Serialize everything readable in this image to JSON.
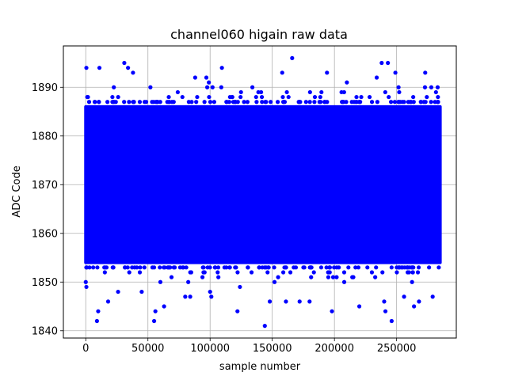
{
  "chart_data": {
    "type": "scatter",
    "title": "channel060 higain raw data",
    "xlabel": "sample number",
    "ylabel": "ADC Code",
    "xlim": [
      -18000,
      298000
    ],
    "ylim": [
      1838.5,
      1898.5
    ],
    "xticks": [
      0,
      50000,
      100000,
      150000,
      200000,
      250000
    ],
    "yticks": [
      1840,
      1850,
      1860,
      1870,
      1880,
      1890
    ],
    "grid": true,
    "series": [
      {
        "color": "#0000ff",
        "x_range": [
          0,
          285000
        ],
        "core_band": [
          1854,
          1886
        ],
        "outliers": [
          [
            500,
            1894
          ],
          [
            500,
            1849
          ],
          [
            9000,
            1842
          ],
          [
            10000,
            1844
          ],
          [
            11000,
            1894
          ],
          [
            18000,
            1846
          ],
          [
            26000,
            1848
          ],
          [
            31000,
            1895
          ],
          [
            34000,
            1894
          ],
          [
            38000,
            1893
          ],
          [
            45000,
            1848
          ],
          [
            52000,
            1890
          ],
          [
            55000,
            1842
          ],
          [
            56000,
            1844
          ],
          [
            63000,
            1845
          ],
          [
            74000,
            1889
          ],
          [
            80000,
            1847
          ],
          [
            84000,
            1847
          ],
          [
            88000,
            1892
          ],
          [
            97000,
            1892
          ],
          [
            99000,
            1891
          ],
          [
            100000,
            1848
          ],
          [
            101000,
            1847
          ],
          [
            109000,
            1890
          ],
          [
            109500,
            1894
          ],
          [
            122000,
            1844
          ],
          [
            124000,
            1849
          ],
          [
            134000,
            1890
          ],
          [
            144000,
            1841
          ],
          [
            148000,
            1846
          ],
          [
            158000,
            1893
          ],
          [
            161000,
            1846
          ],
          [
            166000,
            1896
          ],
          [
            172000,
            1846
          ],
          [
            180000,
            1846
          ],
          [
            194000,
            1893
          ],
          [
            198000,
            1844
          ],
          [
            210000,
            1891
          ],
          [
            220000,
            1845
          ],
          [
            234000,
            1892
          ],
          [
            238000,
            1895
          ],
          [
            240000,
            1846
          ],
          [
            241000,
            1844
          ],
          [
            243000,
            1895
          ],
          [
            246000,
            1842
          ],
          [
            249000,
            1893
          ],
          [
            256000,
            1847
          ],
          [
            264000,
            1845
          ],
          [
            268000,
            1846
          ],
          [
            273000,
            1893
          ],
          [
            279000,
            1847
          ],
          [
            283000,
            1890
          ]
        ]
      }
    ]
  }
}
